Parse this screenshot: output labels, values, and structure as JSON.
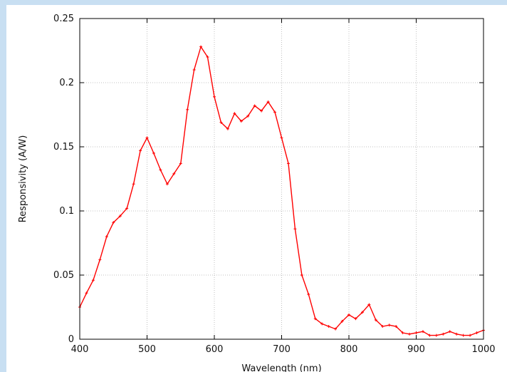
{
  "chart_data": {
    "type": "line",
    "title": "",
    "xlabel": "Wavelength (nm)",
    "ylabel": "Responsivity (A/W)",
    "xlim": [
      400,
      1000
    ],
    "ylim": [
      0,
      0.25
    ],
    "grid": true,
    "x_ticks": [
      "400",
      "500",
      "600",
      "700",
      "800",
      "900",
      "1000"
    ],
    "y_ticks": [
      "0",
      "0.05",
      "0.1",
      "0.15",
      "0.2",
      "0.25"
    ],
    "series": [
      {
        "color": "#ff0000",
        "marker": "plus",
        "x": [
          400,
          410,
          420,
          430,
          440,
          450,
          460,
          470,
          480,
          490,
          500,
          510,
          520,
          530,
          540,
          550,
          560,
          570,
          580,
          590,
          600,
          610,
          620,
          630,
          640,
          650,
          660,
          670,
          680,
          690,
          700,
          710,
          720,
          730,
          740,
          750,
          760,
          770,
          780,
          790,
          800,
          810,
          820,
          830,
          840,
          850,
          860,
          870,
          880,
          890,
          900,
          910,
          920,
          930,
          940,
          950,
          960,
          970,
          980,
          990,
          1000
        ],
        "y": [
          0.025,
          0.036,
          0.046,
          0.062,
          0.08,
          0.091,
          0.096,
          0.102,
          0.121,
          0.147,
          0.157,
          0.145,
          0.132,
          0.121,
          0.129,
          0.137,
          0.179,
          0.21,
          0.228,
          0.22,
          0.189,
          0.169,
          0.164,
          0.176,
          0.17,
          0.174,
          0.182,
          0.178,
          0.185,
          0.177,
          0.157,
          0.137,
          0.086,
          0.05,
          0.035,
          0.016,
          0.012,
          0.01,
          0.008,
          0.014,
          0.019,
          0.016,
          0.021,
          0.027,
          0.015,
          0.01,
          0.011,
          0.01,
          0.005,
          0.004,
          0.005,
          0.006,
          0.003,
          0.003,
          0.004,
          0.006,
          0.004,
          0.003,
          0.003,
          0.005,
          0.007
        ]
      }
    ]
  }
}
